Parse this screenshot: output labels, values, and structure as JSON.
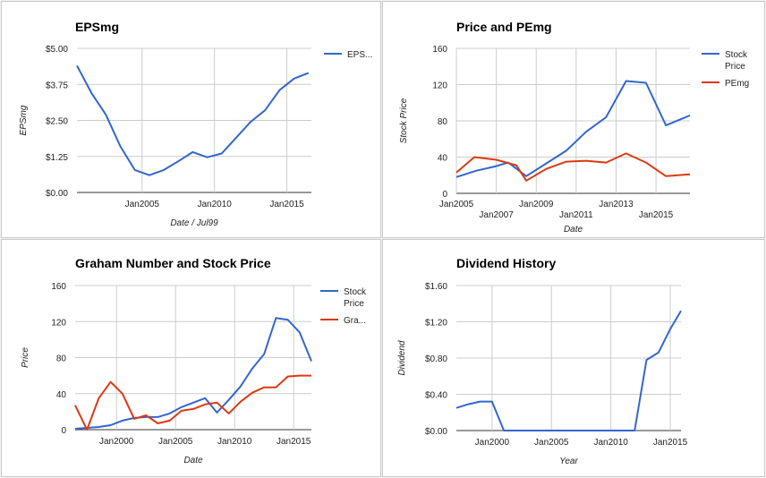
{
  "chart_data": [
    {
      "type": "line",
      "title": "EPSmg",
      "xlabel": "Date / Jul99",
      "ylabel": "EPSmg",
      "ylim": [
        0,
        5
      ],
      "yticks": [
        0,
        1.25,
        2.5,
        3.75,
        5
      ],
      "ytick_labels": [
        "$0.00",
        "$1.25",
        "$2.50",
        "$3.75",
        "$5.00"
      ],
      "xlim": [
        2000.5,
        2016.7
      ],
      "xticks": [
        2005,
        2010,
        2015
      ],
      "xtick_labels": [
        "Jan2005",
        "Jan2010",
        "Jan2015"
      ],
      "legend_position": "right",
      "series": [
        {
          "name": "EPS...",
          "color": "#3366cc",
          "x": [
            2000.5,
            2001.5,
            2002.5,
            2003.5,
            2004.5,
            2005.5,
            2006.5,
            2007.5,
            2008.5,
            2009.5,
            2010.5,
            2011.5,
            2012.5,
            2013.5,
            2014.5,
            2015.5,
            2016.5
          ],
          "y": [
            4.4,
            3.45,
            2.7,
            1.6,
            0.78,
            0.6,
            0.78,
            1.08,
            1.4,
            1.22,
            1.35,
            1.9,
            2.45,
            2.85,
            3.55,
            3.95,
            4.15
          ]
        }
      ]
    },
    {
      "type": "line",
      "title": "Price and PEmg",
      "xlabel": "Date",
      "ylabel": "Stock Price",
      "ylim": [
        0,
        160
      ],
      "yticks": [
        0,
        40,
        80,
        120,
        160
      ],
      "ytick_labels": [
        "0",
        "40",
        "80",
        "120",
        "160"
      ],
      "xlim": [
        2005,
        2016.7
      ],
      "xticks": [
        2005,
        2007,
        2009,
        2011,
        2013,
        2015
      ],
      "xtick_labels": [
        "Jan2005",
        "Jan2007",
        "Jan2009",
        "Jan2011",
        "Jan2013",
        "Jan2015"
      ],
      "legend_position": "right",
      "series": [
        {
          "name": "Stock Price",
          "color": "#3366cc",
          "x": [
            2005,
            2006,
            2007,
            2007.6,
            2008.5,
            2009.5,
            2010.5,
            2011.5,
            2012.5,
            2013.5,
            2014.5,
            2015.5,
            2016.7
          ],
          "y": [
            18,
            25,
            30,
            34,
            19,
            33,
            47,
            68,
            84,
            124,
            122,
            75,
            86
          ]
        },
        {
          "name": "PEmg",
          "color": "#dc3912",
          "x": [
            2005,
            2005.9,
            2007,
            2008,
            2008.5,
            2009.5,
            2010.5,
            2011.5,
            2012.5,
            2013.5,
            2014.5,
            2015.5,
            2016.7
          ],
          "y": [
            23,
            40,
            37,
            31,
            14,
            27,
            35,
            36,
            34,
            44,
            34,
            19,
            21
          ]
        }
      ]
    },
    {
      "type": "line",
      "title": "Graham Number and Stock Price",
      "xlabel": "Date",
      "ylabel": "Price",
      "ylim": [
        0,
        160
      ],
      "yticks": [
        0,
        40,
        80,
        120,
        160
      ],
      "ytick_labels": [
        "0",
        "40",
        "80",
        "120",
        "160"
      ],
      "xlim": [
        1996.5,
        2016.5
      ],
      "xticks": [
        2000,
        2005,
        2010,
        2015
      ],
      "xtick_labels": [
        "Jan2000",
        "Jan2005",
        "Jan2010",
        "Jan2015"
      ],
      "legend_position": "right",
      "series": [
        {
          "name": "Stock Price",
          "color": "#3366cc",
          "x": [
            1996.5,
            1997.5,
            1998.5,
            1999.5,
            2000.5,
            2001.5,
            2002.5,
            2003.5,
            2004.5,
            2005.5,
            2006.5,
            2007.5,
            2008.5,
            2009.5,
            2010.5,
            2011.5,
            2012.5,
            2013.5,
            2014.5,
            2015.5,
            2016.5
          ],
          "y": [
            1,
            2,
            3,
            5,
            10,
            13,
            14,
            14,
            18,
            25,
            30,
            35,
            19,
            33,
            48,
            68,
            84,
            124,
            122,
            108,
            76
          ]
        },
        {
          "name": "Gra...",
          "color": "#dc3912",
          "x": [
            1996.5,
            1997.5,
            1998.5,
            1999.5,
            2000.5,
            2001.5,
            2002.5,
            2003.5,
            2004.5,
            2005.5,
            2006.5,
            2007.5,
            2008.5,
            2009.5,
            2010.5,
            2011.5,
            2012.5,
            2013.5,
            2014.5,
            2015.5,
            2016.5
          ],
          "y": [
            27,
            0,
            35,
            53,
            40,
            12,
            16,
            7,
            10,
            21,
            23,
            28,
            30,
            18,
            31,
            41,
            47,
            47,
            59,
            60,
            60
          ]
        }
      ]
    },
    {
      "type": "line",
      "title": "Dividend History",
      "xlabel": "Year",
      "ylabel": "Dividend",
      "ylim": [
        0,
        1.6
      ],
      "yticks": [
        0,
        0.4,
        0.8,
        1.2,
        1.6
      ],
      "ytick_labels": [
        "$0.00",
        "$0.40",
        "$0.80",
        "$1.20",
        "$1.60"
      ],
      "xlim": [
        1997,
        2015.9
      ],
      "xticks": [
        2000,
        2005,
        2010,
        2015
      ],
      "xtick_labels": [
        "Jan2000",
        "Jan2005",
        "Jan2010",
        "Jan2015"
      ],
      "legend_position": "none",
      "series": [
        {
          "name": "",
          "color": "#3366cc",
          "x": [
            1997,
            1998,
            1999,
            2000,
            2001,
            2002,
            2003,
            2004,
            2005,
            2006,
            2007,
            2008,
            2009,
            2010,
            2011,
            2012,
            2013,
            2014,
            2015,
            2015.9
          ],
          "y": [
            0.25,
            0.29,
            0.32,
            0.32,
            0,
            0,
            0,
            0,
            0,
            0,
            0,
            0,
            0,
            0,
            0,
            0,
            0.78,
            0.86,
            1.12,
            1.32
          ]
        }
      ]
    }
  ]
}
